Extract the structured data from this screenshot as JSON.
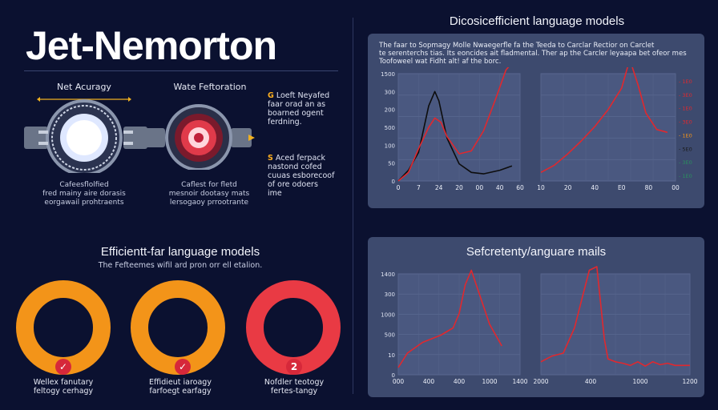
{
  "title": "Jet-Nemorton",
  "left": {
    "engine1": {
      "label": "Net Acuragy",
      "caption": [
        "Cafeesflolfied",
        "fred mainy aire dorasis",
        "eorgawail prohtraents"
      ]
    },
    "engine2": {
      "label": "Wate Feftoration",
      "caption": [
        "Caflest for fletd",
        "mesnoir dootasy mats",
        "lersogaoy prrootrante"
      ]
    },
    "note1": {
      "mark": "G",
      "lines": [
        "Loeft Neyafed",
        "faar orad an as",
        "boarned ogent",
        "ferdning."
      ]
    },
    "note2": {
      "mark": "S",
      "lines": [
        "Aced ferpack",
        "nastond cofed",
        "cuuas esborecoof",
        "of ore odoers",
        "ime"
      ]
    }
  },
  "bottom_left": {
    "heading": "Efficientt-far language models",
    "subtitle": "The Fefteemes wifil ard pron orr ell etalion.",
    "rings": [
      {
        "color": "#f39419",
        "badge": "✓",
        "caption": [
          "Wellex fanutary",
          "feltogy cerhagy"
        ]
      },
      {
        "color": "#f39419",
        "badge": "✓",
        "caption": [
          "Effidieut iaroagy",
          "farfoegt earfagy"
        ]
      },
      {
        "color": "#e93a44",
        "badge": "2",
        "caption": [
          "Nofdler teotogy",
          "fertes-tangy"
        ]
      }
    ]
  },
  "right_top": {
    "heading": "Dicosicefficient language models",
    "text": [
      "The faar to Sopmagy Molle Nwaegerfle fa the Teeda to Carclar Rectior on Carclet",
      "te serenterchs tias. Its eoncides ait fladmental. Ther ap the Carcler leyaapa bet ofeor mes",
      "Toofoweel wat Fidht alt! af the borc."
    ],
    "chart_data": [
      {
        "type": "line",
        "xlabel": "",
        "ylabel": "",
        "ylim": [
          0,
          1500
        ],
        "xlim": [
          0,
          60
        ],
        "y_ticks": [
          "0",
          "50",
          "100",
          "500",
          "200",
          "300",
          "1500"
        ],
        "x_ticks": [
          "0",
          "7",
          "24",
          "20",
          "00",
          "40",
          "60"
        ],
        "series": [
          {
            "color": "#0d0d0d",
            "x": [
              0,
              5,
              10,
              15,
              18,
              20,
              24,
              30,
              36,
              42,
              50,
              56
            ],
            "y": [
              0,
              150,
              400,
              1050,
              1250,
              1120,
              600,
              240,
              120,
              100,
              150,
              210
            ]
          },
          {
            "color": "#e0282e",
            "x": [
              0,
              5,
              10,
              15,
              18,
              21,
              24,
              30,
              36,
              42,
              48,
              53,
              56
            ],
            "y": [
              0,
              120,
              450,
              750,
              880,
              820,
              620,
              380,
              420,
              700,
              1150,
              1550,
              1650
            ]
          }
        ]
      },
      {
        "type": "line",
        "xlabel": "",
        "ylabel": "",
        "ylim": [
          0,
          1500
        ],
        "xlim": [
          0,
          100
        ],
        "x_ticks": [
          "10",
          "20",
          "40",
          "E0",
          "80",
          "00"
        ],
        "legend_ticks": [
          {
            "label": "- 1E0",
            "color": "#e0282e"
          },
          {
            "label": "- 3E0",
            "color": "#e0282e"
          },
          {
            "label": "- 1E0",
            "color": "#e0282e"
          },
          {
            "label": "- 3E0",
            "color": "#e0282e"
          },
          {
            "label": "- 1E0",
            "color": "#f39419"
          },
          {
            "label": "- 5E0",
            "color": "#1a1a1a"
          },
          {
            "label": "- 3E0",
            "color": "#2a8f5f"
          },
          {
            "label": "- 1E0",
            "color": "#2a8f5f"
          }
        ],
        "series": [
          {
            "color": "#e0282e",
            "x": [
              0,
              10,
              20,
              30,
              40,
              50,
              60,
              66,
              72,
              78,
              86,
              94
            ],
            "y": [
              120,
              220,
              380,
              560,
              760,
              1000,
              1300,
              1700,
              1350,
              950,
              720,
              680
            ]
          }
        ]
      }
    ]
  },
  "right_bottom": {
    "heading": "Sefcretenty/anguare mails",
    "chart_data": [
      {
        "type": "line",
        "ylim": [
          0,
          1400
        ],
        "xlim": [
          0,
          2000
        ],
        "y_ticks": [
          "0",
          "10",
          "500",
          "1000",
          "300",
          "1400"
        ],
        "x_ticks": [
          "000",
          "400",
          "400",
          "1000",
          "1400"
        ],
        "series": [
          {
            "color": "#e0282e",
            "x": [
              0,
              150,
              400,
              700,
              900,
              1000,
              1100,
              1200,
              1300,
              1500,
              1700
            ],
            "y": [
              100,
              300,
              450,
              550,
              650,
              850,
              1250,
              1450,
              1200,
              700,
              400
            ]
          }
        ]
      },
      {
        "type": "line",
        "ylim": [
          0,
          1400
        ],
        "xlim": [
          0,
          2000
        ],
        "x_ticks": [
          "2000",
          "400",
          "1000",
          "1200"
        ],
        "series": [
          {
            "color": "#e0282e",
            "x": [
              0,
              150,
              300,
              450,
              550,
              650,
              750,
              850,
              900,
              1000,
              1100,
              1200,
              1300,
              1400,
              1500,
              1600,
              1700,
              1800,
              1900,
              2000
            ],
            "y": [
              180,
              260,
              300,
              650,
              1050,
              1450,
              1500,
              500,
              220,
              180,
              160,
              130,
              180,
              120,
              180,
              140,
              160,
              130,
              130,
              130
            ]
          }
        ]
      }
    ]
  }
}
